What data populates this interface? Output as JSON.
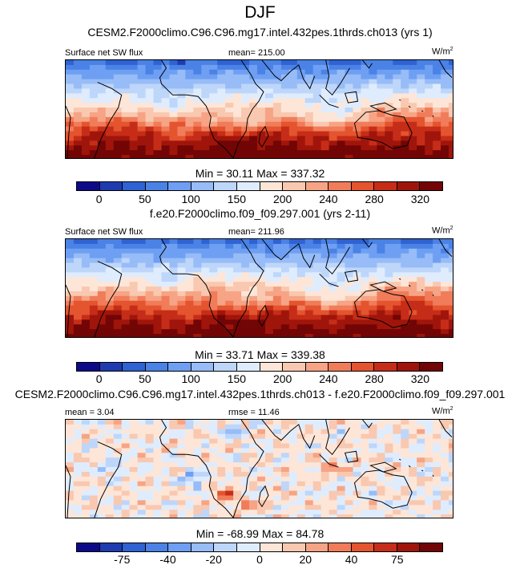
{
  "season": "DJF",
  "panels": [
    {
      "title": "CESM2.F2000climo.C96.C96.mg17.intel.432pes.1thrds.ch013 (yrs 1)",
      "left_label": "Surface net SW flux",
      "center_label": "mean= 215.00",
      "unit_base": "W/m",
      "unit_exp": "2",
      "minmax": "Min =  30.11 Max = 337.32",
      "colorbar_ticks": [
        "0",
        "50",
        "100",
        "150",
        "200",
        "240",
        "280",
        "320"
      ]
    },
    {
      "title": "f.e20.F2000climo.f09_f09.297.001 (yrs 2-11)",
      "left_label": "Surface net SW flux",
      "center_label": "mean= 211.96",
      "unit_base": "W/m",
      "unit_exp": "2",
      "minmax": "Min =  33.71 Max = 339.38",
      "colorbar_ticks": [
        "0",
        "50",
        "100",
        "150",
        "200",
        "240",
        "280",
        "320"
      ]
    },
    {
      "title": "CESM2.F2000climo.C96.C96.mg17.intel.432pes.1thrds.ch013 - f.e20.F2000climo.f09_f09.297.001",
      "left_label": "mean =   3.04",
      "center_label": "rmse =  11.46",
      "unit_base": "W/m",
      "unit_exp": "2",
      "minmax": "Min = -68.99 Max =  84.78",
      "colorbar_ticks": [
        "-75",
        "-40",
        "-20",
        "0",
        "20",
        "40",
        "75"
      ]
    }
  ],
  "chart_data": [
    {
      "type": "heatmap",
      "title": "CESM2.F2000climo.C96.C96.mg17.intel.432pes.1thrds.ch013 (yrs 1)",
      "variable": "Surface net SW flux",
      "units": "W/m2",
      "season": "DJF",
      "mean": 215.0,
      "min": 30.11,
      "max": 337.32,
      "contour_levels": [
        0,
        25,
        50,
        75,
        100,
        125,
        150,
        175,
        200,
        220,
        240,
        260,
        280,
        300,
        320
      ],
      "colorbar_labels": [
        0,
        50,
        100,
        150,
        200,
        240,
        280,
        320
      ],
      "colors": [
        "#0d0a8a",
        "#1e3cb0",
        "#2f62d2",
        "#4a82e6",
        "#6e9ff2",
        "#97bcf7",
        "#bdd6fa",
        "#dfecfd",
        "#fde6d8",
        "#f9c8b0",
        "#f6a485",
        "#f17c5a",
        "#e4542f",
        "#c62d18",
        "#a0150b",
        "#720505"
      ]
    },
    {
      "type": "heatmap",
      "title": "f.e20.F2000climo.f09_f09.297.001 (yrs 2-11)",
      "variable": "Surface net SW flux",
      "units": "W/m2",
      "season": "DJF",
      "mean": 211.96,
      "min": 33.71,
      "max": 339.38,
      "contour_levels": [
        0,
        25,
        50,
        75,
        100,
        125,
        150,
        175,
        200,
        220,
        240,
        260,
        280,
        300,
        320
      ],
      "colorbar_labels": [
        0,
        50,
        100,
        150,
        200,
        240,
        280,
        320
      ],
      "colors": [
        "#0d0a8a",
        "#1e3cb0",
        "#2f62d2",
        "#4a82e6",
        "#6e9ff2",
        "#97bcf7",
        "#bdd6fa",
        "#dfecfd",
        "#fde6d8",
        "#f9c8b0",
        "#f6a485",
        "#f17c5a",
        "#e4542f",
        "#c62d18",
        "#a0150b",
        "#720505"
      ]
    },
    {
      "type": "heatmap",
      "title": "CESM2.F2000climo.C96.C96.mg17.intel.432pes.1thrds.ch013 - f.e20.F2000climo.f09_f09.297.001",
      "variable": "Surface net SW flux difference",
      "units": "W/m2",
      "season": "DJF",
      "mean": 3.04,
      "rmse": 11.46,
      "min": -68.99,
      "max": 84.78,
      "contour_levels": [
        -100,
        -75,
        -50,
        -40,
        -30,
        -20,
        -10,
        0,
        10,
        20,
        30,
        40,
        50,
        75,
        100
      ],
      "colorbar_labels": [
        -75,
        -40,
        -20,
        0,
        20,
        40,
        75
      ],
      "colors": [
        "#0d0a8a",
        "#1e3cb0",
        "#2f62d2",
        "#4a82e6",
        "#6e9ff2",
        "#97bcf7",
        "#bdd6fa",
        "#dfecfd",
        "#fde6d8",
        "#f9c8b0",
        "#f6a485",
        "#f17c5a",
        "#e4542f",
        "#c62d18",
        "#a0150b",
        "#720505"
      ]
    }
  ]
}
